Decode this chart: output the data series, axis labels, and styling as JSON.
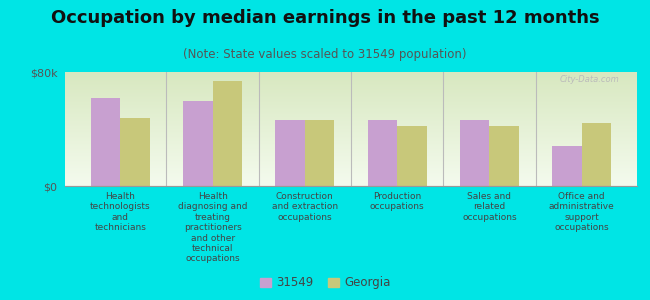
{
  "title": "Occupation by median earnings in the past 12 months",
  "subtitle": "(Note: State values scaled to 31549 population)",
  "categories": [
    "Health\ntechnologists\nand\ntechnicians",
    "Health\ndiagnosing and\ntreating\npractitioners\nand other\ntechnical\noccupations",
    "Construction\nand extraction\noccupations",
    "Production\noccupations",
    "Sales and\nrelated\noccupations",
    "Office and\nadministrative\nsupport\noccupations"
  ],
  "values_31549": [
    62000,
    60000,
    46000,
    46000,
    46000,
    28000
  ],
  "values_georgia": [
    48000,
    74000,
    46000,
    42000,
    42000,
    44000
  ],
  "ylim": [
    0,
    80000
  ],
  "yticks": [
    0,
    80000
  ],
  "yticklabels": [
    "$0",
    "$80k"
  ],
  "color_31549": "#c8a0d0",
  "color_georgia": "#c8c87a",
  "background_color": "#00e5e5",
  "plot_bg_top": "#d8e8c0",
  "plot_bg_bottom": "#f4fbee",
  "legend_label_31549": "31549",
  "legend_label_georgia": "Georgia",
  "watermark": "City-Data.com",
  "bar_width": 0.32,
  "title_fontsize": 13,
  "subtitle_fontsize": 8.5,
  "tick_fontsize": 8,
  "label_fontsize": 6.5
}
